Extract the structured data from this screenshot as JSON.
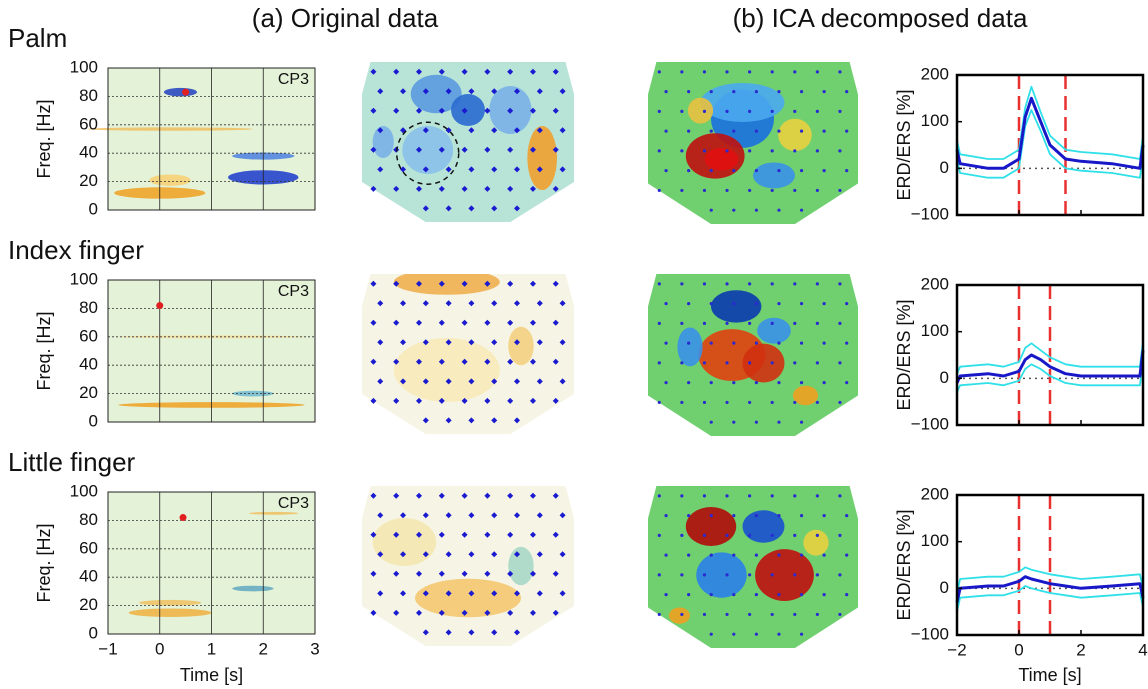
{
  "header": {
    "left": "(a) Original data",
    "right": "(b) ICA decomposed data"
  },
  "chart_data": [
    {
      "type": "heatmap",
      "title": "Palm",
      "annotation": "CP3",
      "ylabel": "Freq. [Hz]",
      "xlim": [
        -1,
        3
      ],
      "xticks": [
        {
          "value": -1,
          "label": "−1"
        },
        0,
        1,
        2,
        3
      ],
      "ylim": [
        0,
        100
      ],
      "yticks": [
        0,
        20,
        40,
        60,
        80,
        100
      ],
      "point": {
        "x": 0.5,
        "y": 83,
        "color": "#e02020"
      }
    },
    {
      "type": "heatmap",
      "title": "Index finger",
      "annotation": "CP3",
      "ylabel": "Freq. [Hz]",
      "xlim": [
        -1,
        3
      ],
      "xticks": [
        {
          "value": -1,
          "label": "−1"
        },
        0,
        1,
        2,
        3
      ],
      "ylim": [
        0,
        100
      ],
      "yticks": [
        0,
        20,
        40,
        60,
        80,
        100
      ],
      "point": {
        "x": 0,
        "y": 82,
        "color": "#e02020"
      }
    },
    {
      "type": "heatmap",
      "title": "Little finger",
      "annotation": "CP3",
      "ylabel": "Freq. [Hz]",
      "xlabel": "Time [s]",
      "xlim": [
        -1,
        3
      ],
      "xticks": [
        {
          "value": -1,
          "label": "−1"
        },
        0,
        1,
        2,
        3
      ],
      "ylim": [
        0,
        100
      ],
      "yticks": [
        0,
        20,
        40,
        60,
        80,
        100
      ],
      "point": {
        "x": 0.45,
        "y": 82,
        "color": "#e02020"
      }
    },
    {
      "type": "line",
      "ylabel": "ERD/ERS [%]",
      "xlim": [
        -2,
        4
      ],
      "xticks": [
        {
          "value": -2,
          "label": "−2"
        },
        0,
        2,
        4
      ],
      "ylim": [
        -100,
        200
      ],
      "yticks": [
        {
          "value": -100,
          "label": "−100"
        },
        0,
        100,
        200
      ],
      "vlines": [
        0,
        1.5
      ],
      "vline_color": "#e83030",
      "x": [
        -2,
        -1.9,
        -1,
        -0.5,
        0,
        0.2,
        0.4,
        0.7,
        1,
        1.5,
        2,
        3,
        3.9,
        4
      ],
      "series": [
        {
          "color": "#30e0e8",
          "values": [
            60,
            30,
            20,
            20,
            40,
            130,
            175,
            120,
            70,
            40,
            35,
            30,
            20,
            70
          ]
        },
        {
          "color": "#30e0e8",
          "values": [
            20,
            -10,
            -20,
            -20,
            0,
            90,
            125,
            80,
            30,
            0,
            -5,
            -10,
            -20,
            30
          ]
        },
        {
          "color": "#1818c8",
          "values": [
            40,
            10,
            0,
            0,
            20,
            110,
            150,
            100,
            50,
            20,
            15,
            10,
            0,
            50
          ]
        }
      ]
    },
    {
      "type": "line",
      "ylabel": "ERD/ERS [%]",
      "xlim": [
        -2,
        4
      ],
      "xticks": [
        {
          "value": -2,
          "label": "−2"
        },
        0,
        2,
        4
      ],
      "ylim": [
        -100,
        200
      ],
      "yticks": [
        {
          "value": -100,
          "label": "−100"
        },
        0,
        100,
        200
      ],
      "vlines": [
        0,
        1
      ],
      "vline_color": "#e83030",
      "x": [
        -2,
        -1.9,
        -1,
        -0.5,
        0,
        0.2,
        0.4,
        0.7,
        1,
        1.5,
        2,
        3,
        3.9,
        4
      ],
      "series": [
        {
          "color": "#30e0e8",
          "values": [
            10,
            25,
            30,
            25,
            35,
            65,
            75,
            60,
            45,
            30,
            25,
            25,
            25,
            80
          ]
        },
        {
          "color": "#30e0e8",
          "values": [
            -30,
            -15,
            -10,
            -15,
            -5,
            20,
            30,
            20,
            5,
            -10,
            -15,
            -15,
            -15,
            40
          ]
        },
        {
          "color": "#1818c8",
          "values": [
            -10,
            5,
            10,
            5,
            15,
            40,
            50,
            40,
            25,
            10,
            5,
            5,
            5,
            60
          ]
        }
      ]
    },
    {
      "type": "line",
      "ylabel": "ERD/ERS [%]",
      "xlabel": "Time [s]",
      "xlim": [
        -2,
        4
      ],
      "xticks": [
        {
          "value": -2,
          "label": "−2"
        },
        0,
        2,
        4
      ],
      "ylim": [
        -100,
        200
      ],
      "yticks": [
        {
          "value": -100,
          "label": "−100"
        },
        0,
        100,
        200
      ],
      "vlines": [
        0,
        1
      ],
      "vline_color": "#e83030",
      "x": [
        -2,
        -1.9,
        -1,
        -0.5,
        0,
        0.2,
        0.4,
        0.7,
        1,
        1.5,
        2,
        3,
        3.9,
        4
      ],
      "series": [
        {
          "color": "#30e0e8",
          "values": [
            -10,
            20,
            25,
            25,
            35,
            45,
            40,
            35,
            30,
            25,
            20,
            25,
            30,
            0
          ]
        },
        {
          "color": "#30e0e8",
          "values": [
            -50,
            -20,
            -15,
            -15,
            -5,
            5,
            0,
            -5,
            -10,
            -15,
            -20,
            -15,
            -10,
            -40
          ]
        },
        {
          "color": "#1818c8",
          "values": [
            -30,
            0,
            5,
            5,
            15,
            25,
            20,
            15,
            10,
            5,
            0,
            5,
            10,
            -20
          ]
        }
      ]
    }
  ]
}
